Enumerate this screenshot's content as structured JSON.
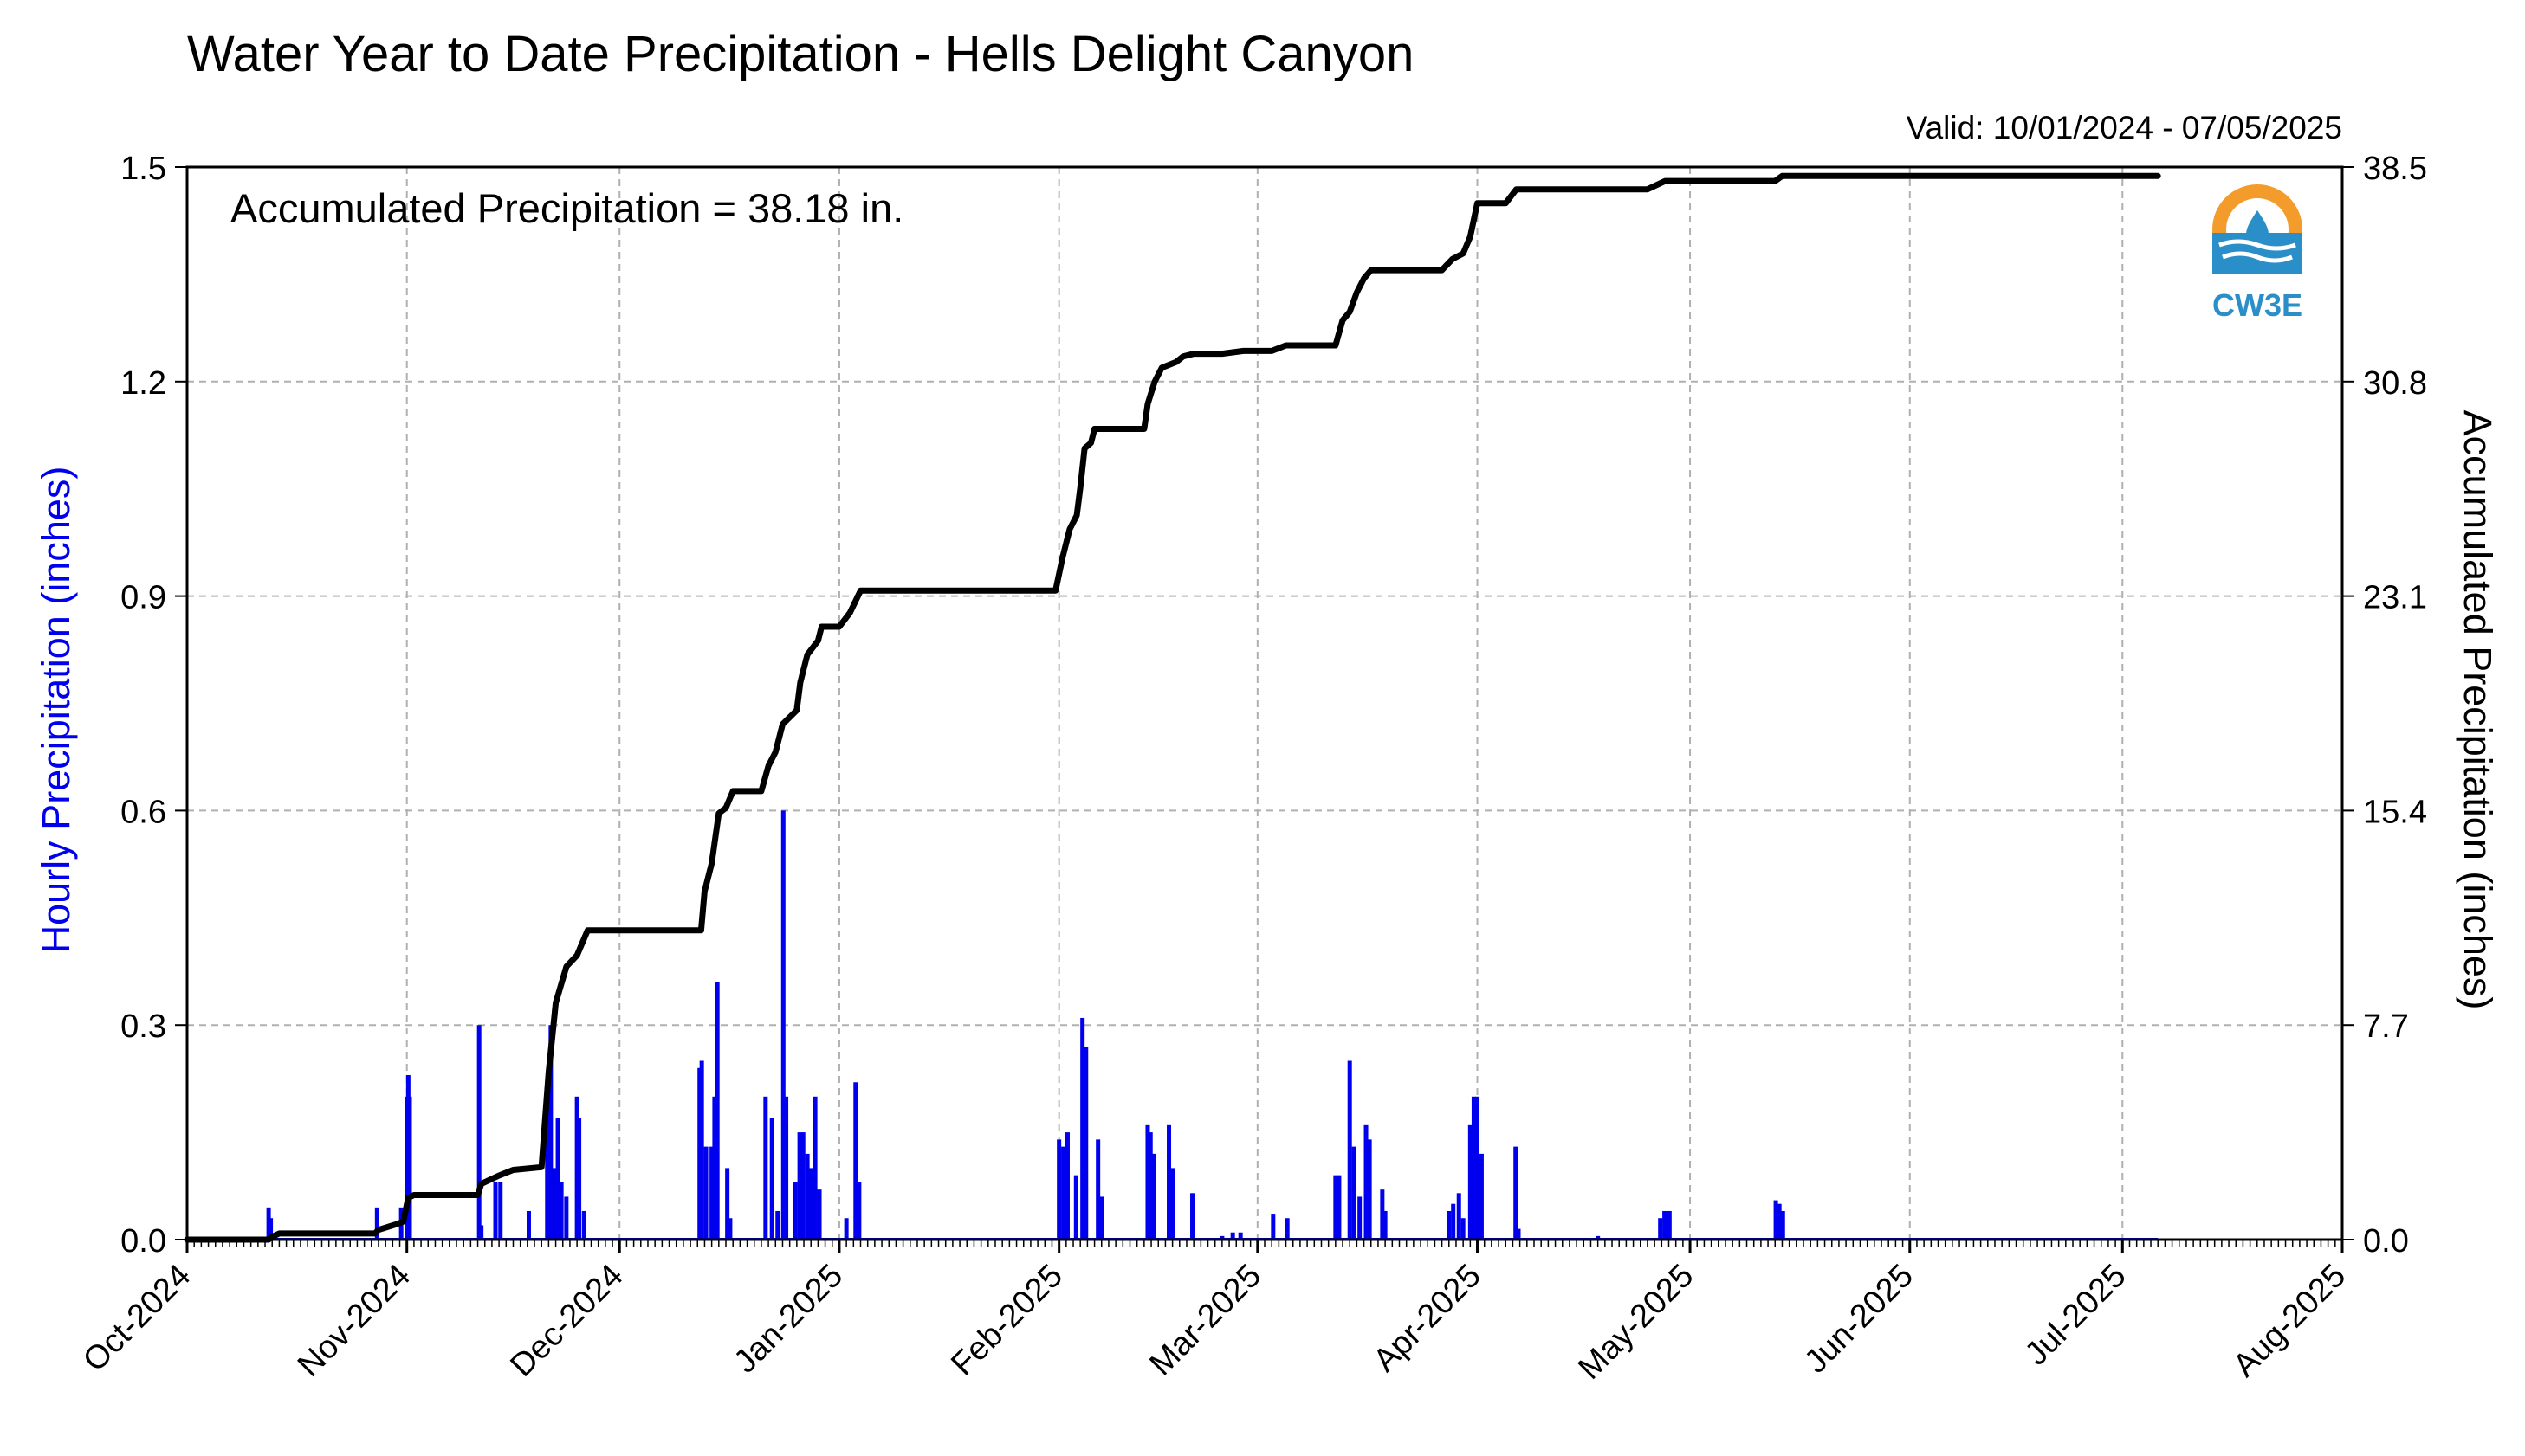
{
  "chart_data": {
    "type": "bar+line",
    "title": "Water Year to Date Precipitation - Hells Delight Canyon",
    "subtitle": "Valid: 10/01/2024 - 07/05/2025",
    "annotation": "Accumulated Precipitation = 38.18 in.",
    "logo_text": "CW3E",
    "ylabel_left": "Hourly Precipitation (inches)",
    "ylabel_right": "Accumulated Precipitation (inches)",
    "ylim_left": [
      0,
      1.5
    ],
    "ylim_right": [
      0,
      38.5
    ],
    "yticks_left": [
      "0.0",
      "0.3",
      "0.6",
      "0.9",
      "1.2",
      "1.5"
    ],
    "yticks_right": [
      "0.0",
      "7.7",
      "15.4",
      "23.1",
      "30.8",
      "38.5"
    ],
    "x_range_days": [
      0,
      304
    ],
    "x_tick_labels": [
      {
        "label": "Oct-2024",
        "day": 0
      },
      {
        "label": "Nov-2024",
        "day": 31
      },
      {
        "label": "Dec-2024",
        "day": 61
      },
      {
        "label": "Jan-2025",
        "day": 92
      },
      {
        "label": "Feb-2025",
        "day": 123
      },
      {
        "label": "Mar-2025",
        "day": 151
      },
      {
        "label": "Apr-2025",
        "day": 182
      },
      {
        "label": "May-2025",
        "day": 212
      },
      {
        "label": "Jun-2025",
        "day": 243
      },
      {
        "label": "Jul-2025",
        "day": 273
      },
      {
        "label": "Aug-2025",
        "day": 304
      }
    ],
    "grid": true,
    "colors": {
      "hourly": "#0000ee",
      "accumulated": "#000000",
      "grid": "#b0b0b0",
      "left_label": "#0000ee",
      "logo_orange": "#f39c2c",
      "logo_blue": "#2a8fc9"
    },
    "series": [
      {
        "name": "Hourly Precipitation",
        "type": "bar",
        "points": [
          [
            11.5,
            0.045
          ],
          [
            11.8,
            0.03
          ],
          [
            26.8,
            0.045
          ],
          [
            30.2,
            0.045
          ],
          [
            31.0,
            0.2
          ],
          [
            31.2,
            0.23
          ],
          [
            31.4,
            0.2
          ],
          [
            41.2,
            0.3
          ],
          [
            41.5,
            0.02
          ],
          [
            43.5,
            0.08
          ],
          [
            44.2,
            0.08
          ],
          [
            48.2,
            0.04
          ],
          [
            50.8,
            0.22
          ],
          [
            51.3,
            0.3
          ],
          [
            51.8,
            0.1
          ],
          [
            52.3,
            0.17
          ],
          [
            52.8,
            0.08
          ],
          [
            53.5,
            0.06
          ],
          [
            55.0,
            0.2
          ],
          [
            55.3,
            0.17
          ],
          [
            56.0,
            0.04
          ],
          [
            72.3,
            0.24
          ],
          [
            72.6,
            0.25
          ],
          [
            73.2,
            0.13
          ],
          [
            74.0,
            0.13
          ],
          [
            74.4,
            0.2
          ],
          [
            74.8,
            0.36
          ],
          [
            76.2,
            0.1
          ],
          [
            76.6,
            0.03
          ],
          [
            81.6,
            0.2
          ],
          [
            82.5,
            0.17
          ],
          [
            83.3,
            0.04
          ],
          [
            84.1,
            0.6
          ],
          [
            84.5,
            0.2
          ],
          [
            85.8,
            0.08
          ],
          [
            86.4,
            0.15
          ],
          [
            86.9,
            0.15
          ],
          [
            87.5,
            0.12
          ],
          [
            88.0,
            0.1
          ],
          [
            88.6,
            0.2
          ],
          [
            89.2,
            0.07
          ],
          [
            93.0,
            0.03
          ],
          [
            94.3,
            0.22
          ],
          [
            94.8,
            0.08
          ],
          [
            123.0,
            0.14
          ],
          [
            123.6,
            0.13
          ],
          [
            124.2,
            0.15
          ],
          [
            125.4,
            0.09
          ],
          [
            126.3,
            0.31
          ],
          [
            126.8,
            0.27
          ],
          [
            128.5,
            0.14
          ],
          [
            129.0,
            0.06
          ],
          [
            135.5,
            0.16
          ],
          [
            135.9,
            0.15
          ],
          [
            136.4,
            0.12
          ],
          [
            138.5,
            0.16
          ],
          [
            139.0,
            0.1
          ],
          [
            141.8,
            0.065
          ],
          [
            146.0,
            0.005
          ],
          [
            147.5,
            0.01
          ],
          [
            148.6,
            0.01
          ],
          [
            153.2,
            0.035
          ],
          [
            155.2,
            0.03
          ],
          [
            162.0,
            0.09
          ],
          [
            162.5,
            0.09
          ],
          [
            164.0,
            0.25
          ],
          [
            164.6,
            0.13
          ],
          [
            165.4,
            0.06
          ],
          [
            166.3,
            0.16
          ],
          [
            166.8,
            0.14
          ],
          [
            168.6,
            0.07
          ],
          [
            169.0,
            0.04
          ],
          [
            178.0,
            0.04
          ],
          [
            178.6,
            0.05
          ],
          [
            179.4,
            0.065
          ],
          [
            180.0,
            0.03
          ],
          [
            181.0,
            0.16
          ],
          [
            181.5,
            0.2
          ],
          [
            182.0,
            0.2
          ],
          [
            182.6,
            0.12
          ],
          [
            187.4,
            0.13
          ],
          [
            187.8,
            0.015
          ],
          [
            199.0,
            0.005
          ],
          [
            207.8,
            0.03
          ],
          [
            208.4,
            0.04
          ],
          [
            209.1,
            0.04
          ],
          [
            224.1,
            0.055
          ],
          [
            224.6,
            0.05
          ],
          [
            225.1,
            0.04
          ]
        ]
      },
      {
        "name": "Accumulated Precipitation",
        "type": "line",
        "points": [
          [
            0,
            0.0
          ],
          [
            11.5,
            0.0
          ],
          [
            12.0,
            0.1
          ],
          [
            13.0,
            0.22
          ],
          [
            26.5,
            0.22
          ],
          [
            27.0,
            0.35
          ],
          [
            29.5,
            0.55
          ],
          [
            30.5,
            0.65
          ],
          [
            31.2,
            1.5
          ],
          [
            32.0,
            1.6
          ],
          [
            41.0,
            1.6
          ],
          [
            41.5,
            2.0
          ],
          [
            44.0,
            2.3
          ],
          [
            46.0,
            2.5
          ],
          [
            50.0,
            2.6
          ],
          [
            51.0,
            6.0
          ],
          [
            52.0,
            8.5
          ],
          [
            53.5,
            9.8
          ],
          [
            55.0,
            10.2
          ],
          [
            56.5,
            11.1
          ],
          [
            72.5,
            11.1
          ],
          [
            73.0,
            12.5
          ],
          [
            74.0,
            13.5
          ],
          [
            75.0,
            15.3
          ],
          [
            76.0,
            15.5
          ],
          [
            77.0,
            16.1
          ],
          [
            81.0,
            16.1
          ],
          [
            82.0,
            17.0
          ],
          [
            83.0,
            17.5
          ],
          [
            84.0,
            18.5
          ],
          [
            86.0,
            19.0
          ],
          [
            86.5,
            20.0
          ],
          [
            87.5,
            21.0
          ],
          [
            89.0,
            21.5
          ],
          [
            89.5,
            22.0
          ],
          [
            92.0,
            22.0
          ],
          [
            93.5,
            22.5
          ],
          [
            95.0,
            23.3
          ],
          [
            122.5,
            23.3
          ],
          [
            123.5,
            24.5
          ],
          [
            124.5,
            25.5
          ],
          [
            125.5,
            26.0
          ],
          [
            126.0,
            27.0
          ],
          [
            126.6,
            28.4
          ],
          [
            127.5,
            28.6
          ],
          [
            128.0,
            29.1
          ],
          [
            135.0,
            29.1
          ],
          [
            135.5,
            30.0
          ],
          [
            136.5,
            30.8
          ],
          [
            137.5,
            31.3
          ],
          [
            139.5,
            31.5
          ],
          [
            140.5,
            31.7
          ],
          [
            142.0,
            31.8
          ],
          [
            146.0,
            31.8
          ],
          [
            149.0,
            31.9
          ],
          [
            153.0,
            31.9
          ],
          [
            155.0,
            32.1
          ],
          [
            162.0,
            32.1
          ],
          [
            163.0,
            33.0
          ],
          [
            164.0,
            33.3
          ],
          [
            165.0,
            34.0
          ],
          [
            166.0,
            34.5
          ],
          [
            167.0,
            34.8
          ],
          [
            169.5,
            34.8
          ],
          [
            177.0,
            34.8
          ],
          [
            178.5,
            35.2
          ],
          [
            180.0,
            35.4
          ],
          [
            181.0,
            36.0
          ],
          [
            182.0,
            37.2
          ],
          [
            186.0,
            37.2
          ],
          [
            187.5,
            37.7
          ],
          [
            199.0,
            37.7
          ],
          [
            206.0,
            37.7
          ],
          [
            208.5,
            38.0
          ],
          [
            224.0,
            38.0
          ],
          [
            225.0,
            38.18
          ],
          [
            278.0,
            38.18
          ]
        ]
      }
    ]
  }
}
